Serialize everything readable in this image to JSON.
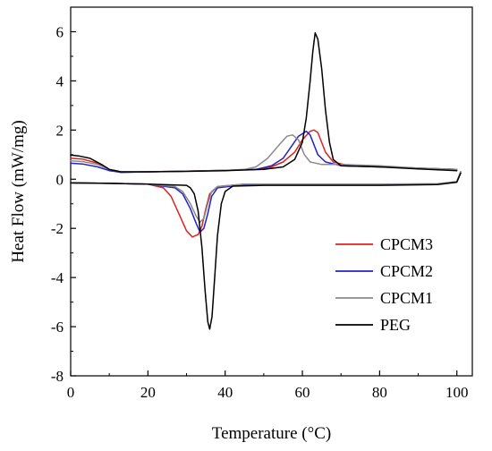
{
  "chart_data": {
    "type": "line",
    "title": "",
    "xlabel": "Temperature (°C)",
    "ylabel": "Heat Flow (mW/mg)",
    "xlim": [
      0,
      104
    ],
    "ylim": [
      -8,
      7
    ],
    "xticks": [
      0,
      20,
      40,
      60,
      80,
      100
    ],
    "xtick_labels": [
      "0",
      "20",
      "40",
      "60",
      "80",
      "100"
    ],
    "yticks": [
      -8,
      -6,
      -4,
      -2,
      0,
      2,
      4,
      6
    ],
    "ytick_labels": [
      "-8",
      "-6",
      "-4",
      "-2",
      "0",
      "2",
      "4",
      "6"
    ],
    "grid": false,
    "legend_position": "bottom-right",
    "series": [
      {
        "name": "CPCM3",
        "color": "#e0201c",
        "heating": [
          [
            0,
            0.85
          ],
          [
            3,
            0.82
          ],
          [
            7,
            0.65
          ],
          [
            10,
            0.4
          ],
          [
            13,
            0.28
          ],
          [
            20,
            0.3
          ],
          [
            30,
            0.33
          ],
          [
            40,
            0.36
          ],
          [
            48,
            0.4
          ],
          [
            52,
            0.5
          ],
          [
            55,
            0.7
          ],
          [
            58,
            1.1
          ],
          [
            60,
            1.6
          ],
          [
            62,
            1.95
          ],
          [
            63,
            2.0
          ],
          [
            64,
            1.9
          ],
          [
            65,
            1.5
          ],
          [
            66,
            1.1
          ],
          [
            68,
            0.7
          ],
          [
            72,
            0.55
          ],
          [
            80,
            0.5
          ],
          [
            90,
            0.45
          ],
          [
            100,
            0.4
          ]
        ],
        "cooling": [
          [
            0,
            -0.15
          ],
          [
            10,
            -0.17
          ],
          [
            20,
            -0.2
          ],
          [
            24,
            -0.35
          ],
          [
            26,
            -0.7
          ],
          [
            28,
            -1.4
          ],
          [
            30,
            -2.1
          ],
          [
            31.5,
            -2.35
          ],
          [
            33,
            -2.25
          ],
          [
            34,
            -1.9
          ],
          [
            35,
            -1.2
          ],
          [
            36,
            -0.6
          ],
          [
            38,
            -0.3
          ],
          [
            45,
            -0.2
          ],
          [
            60,
            -0.22
          ],
          [
            80,
            -0.22
          ],
          [
            95,
            -0.2
          ],
          [
            100,
            -0.1
          ],
          [
            101,
            0.3
          ]
        ]
      },
      {
        "name": "CPCM2",
        "color": "#2222c8",
        "heating": [
          [
            0,
            0.65
          ],
          [
            3,
            0.62
          ],
          [
            7,
            0.5
          ],
          [
            10,
            0.35
          ],
          [
            13,
            0.28
          ],
          [
            20,
            0.3
          ],
          [
            30,
            0.33
          ],
          [
            40,
            0.36
          ],
          [
            48,
            0.4
          ],
          [
            52,
            0.55
          ],
          [
            55,
            0.85
          ],
          [
            57,
            1.3
          ],
          [
            59,
            1.75
          ],
          [
            61,
            1.95
          ],
          [
            62,
            1.8
          ],
          [
            63,
            1.4
          ],
          [
            64,
            1.0
          ],
          [
            66,
            0.7
          ],
          [
            70,
            0.55
          ],
          [
            80,
            0.5
          ],
          [
            90,
            0.45
          ],
          [
            100,
            0.4
          ]
        ],
        "cooling": [
          [
            0,
            -0.15
          ],
          [
            10,
            -0.17
          ],
          [
            20,
            -0.2
          ],
          [
            27,
            -0.35
          ],
          [
            29,
            -0.6
          ],
          [
            31,
            -1.2
          ],
          [
            32.5,
            -1.8
          ],
          [
            33.5,
            -2.15
          ],
          [
            34.5,
            -2.0
          ],
          [
            35.5,
            -1.4
          ],
          [
            36.5,
            -0.7
          ],
          [
            38,
            -0.35
          ],
          [
            45,
            -0.22
          ],
          [
            60,
            -0.22
          ],
          [
            80,
            -0.22
          ],
          [
            95,
            -0.2
          ],
          [
            100,
            -0.1
          ],
          [
            101,
            0.3
          ]
        ]
      },
      {
        "name": "CPCM1",
        "color": "#8a8a8a",
        "heating": [
          [
            0,
            0.75
          ],
          [
            3,
            0.72
          ],
          [
            7,
            0.6
          ],
          [
            10,
            0.4
          ],
          [
            13,
            0.3
          ],
          [
            20,
            0.3
          ],
          [
            30,
            0.33
          ],
          [
            40,
            0.36
          ],
          [
            45,
            0.4
          ],
          [
            48,
            0.5
          ],
          [
            51,
            0.85
          ],
          [
            54,
            1.4
          ],
          [
            56,
            1.75
          ],
          [
            57.5,
            1.8
          ],
          [
            59,
            1.6
          ],
          [
            60.5,
            1.0
          ],
          [
            62,
            0.7
          ],
          [
            65,
            0.6
          ],
          [
            70,
            0.6
          ],
          [
            80,
            0.55
          ],
          [
            90,
            0.45
          ],
          [
            100,
            0.4
          ]
        ],
        "cooling": [
          [
            0,
            -0.15
          ],
          [
            10,
            -0.17
          ],
          [
            20,
            -0.2
          ],
          [
            27,
            -0.3
          ],
          [
            29,
            -0.5
          ],
          [
            31,
            -1.0
          ],
          [
            32.5,
            -1.5
          ],
          [
            33.5,
            -1.75
          ],
          [
            34.5,
            -1.6
          ],
          [
            35.5,
            -1.0
          ],
          [
            36.5,
            -0.5
          ],
          [
            38,
            -0.3
          ],
          [
            45,
            -0.2
          ],
          [
            60,
            -0.2
          ],
          [
            80,
            -0.2
          ],
          [
            95,
            -0.18
          ],
          [
            100,
            -0.1
          ],
          [
            101,
            0.3
          ]
        ]
      },
      {
        "name": "PEG",
        "color": "#000000",
        "heating": [
          [
            0,
            0.98
          ],
          [
            2,
            0.95
          ],
          [
            5,
            0.85
          ],
          [
            8,
            0.6
          ],
          [
            10,
            0.4
          ],
          [
            13,
            0.3
          ],
          [
            20,
            0.3
          ],
          [
            30,
            0.32
          ],
          [
            40,
            0.35
          ],
          [
            50,
            0.4
          ],
          [
            55,
            0.5
          ],
          [
            58,
            0.8
          ],
          [
            60,
            1.5
          ],
          [
            61,
            2.5
          ],
          [
            62,
            4.0
          ],
          [
            62.7,
            5.2
          ],
          [
            63.3,
            5.95
          ],
          [
            64,
            5.7
          ],
          [
            65,
            4.5
          ],
          [
            66,
            2.8
          ],
          [
            67,
            1.5
          ],
          [
            68,
            0.8
          ],
          [
            70,
            0.55
          ],
          [
            80,
            0.5
          ],
          [
            90,
            0.42
          ],
          [
            100,
            0.35
          ]
        ],
        "cooling": [
          [
            0,
            -0.15
          ],
          [
            10,
            -0.17
          ],
          [
            20,
            -0.2
          ],
          [
            30,
            -0.25
          ],
          [
            31,
            -0.35
          ],
          [
            32,
            -0.6
          ],
          [
            33,
            -1.3
          ],
          [
            34,
            -2.8
          ],
          [
            34.8,
            -4.5
          ],
          [
            35.5,
            -5.8
          ],
          [
            36,
            -6.1
          ],
          [
            36.6,
            -5.6
          ],
          [
            37.3,
            -4.0
          ],
          [
            38,
            -2.3
          ],
          [
            39,
            -1.0
          ],
          [
            40,
            -0.5
          ],
          [
            42,
            -0.28
          ],
          [
            50,
            -0.25
          ],
          [
            60,
            -0.25
          ],
          [
            80,
            -0.25
          ],
          [
            95,
            -0.22
          ],
          [
            100,
            -0.12
          ],
          [
            101,
            0.25
          ]
        ]
      }
    ]
  }
}
